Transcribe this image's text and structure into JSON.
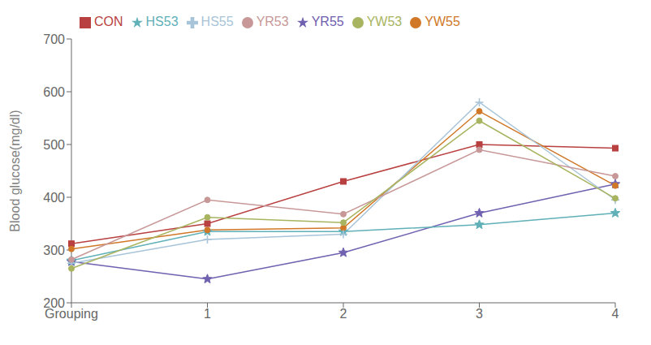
{
  "chart_data": {
    "type": "line",
    "categories": [
      "Grouping",
      "1",
      "2",
      "3",
      "4"
    ],
    "series": [
      {
        "name": "CON",
        "color": "#B94040",
        "marker": "square",
        "values": [
          312,
          350,
          430,
          500,
          493
        ]
      },
      {
        "name": "YR55",
        "color": "#7060B0",
        "marker": "star",
        "values": [
          278,
          245,
          295,
          370,
          425
        ]
      },
      {
        "name": "HS53",
        "color": "#60B0B8",
        "marker": "star",
        "values": [
          280,
          335,
          335,
          348,
          370
        ]
      },
      {
        "name": "YW55",
        "color": "#D07828",
        "marker": "circle",
        "values": [
          302,
          338,
          342,
          563,
          422
        ]
      },
      {
        "name": "HS55",
        "color": "#A8C4D8",
        "marker": "plus",
        "values": [
          275,
          320,
          330,
          580,
          395
        ]
      },
      {
        "name": "YR53",
        "color": "#C89898",
        "marker": "circle",
        "values": [
          282,
          395,
          368,
          490,
          440
        ]
      },
      {
        "name": "YW53",
        "color": "#A8B460",
        "marker": "circle",
        "values": [
          265,
          362,
          352,
          545,
          398
        ]
      }
    ],
    "ylim": [
      200,
      700
    ],
    "yticks": [
      200,
      300,
      400,
      500,
      600,
      700
    ],
    "ylabel": "Blood glucose(mg/dl)",
    "legend": "upper left",
    "grid": false
  }
}
